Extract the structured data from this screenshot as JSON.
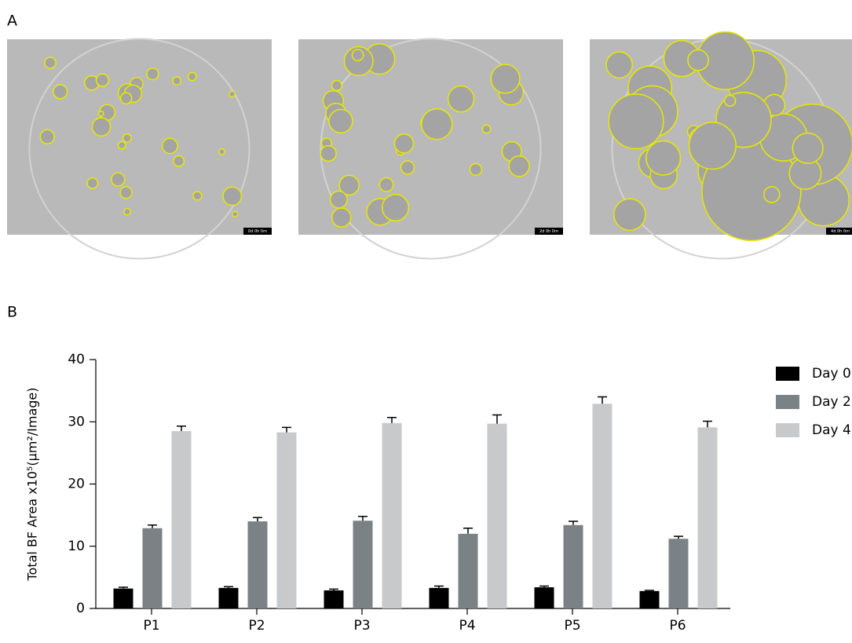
{
  "panel_labels": [
    "A",
    "B"
  ],
  "images": [
    {
      "timestamp": "0d 0h 0m"
    },
    {
      "timestamp": "2d 0h 0m"
    },
    {
      "timestamp": "4d 0h 0m"
    }
  ],
  "chart_data": {
    "type": "bar",
    "y_label": "Total BF Area x10⁵(µm²/Image)",
    "categories": [
      "P1",
      "P2",
      "P3",
      "P4",
      "P5",
      "P6"
    ],
    "series": [
      {
        "name": "Day 0",
        "color": "#000000",
        "values": [
          3.2,
          3.3,
          2.9,
          3.3,
          3.4,
          2.8
        ],
        "errors": [
          0.2,
          0.2,
          0.2,
          0.3,
          0.2,
          0.1
        ]
      },
      {
        "name": "Day 2",
        "color": "#7a8285",
        "values": [
          12.9,
          14.0,
          14.1,
          12.0,
          13.4,
          11.2
        ],
        "errors": [
          0.5,
          0.6,
          0.7,
          0.9,
          0.6,
          0.4
        ]
      },
      {
        "name": "Day 4",
        "color": "#c8c9cb",
        "values": [
          28.5,
          28.3,
          29.8,
          29.7,
          32.9,
          29.1
        ],
        "errors": [
          0.8,
          0.8,
          0.9,
          1.4,
          1.1,
          1.0
        ]
      }
    ],
    "ylim": [
      0,
      40
    ],
    "yticks": [
      0,
      10,
      20,
      30,
      40
    ],
    "legend": "right"
  }
}
